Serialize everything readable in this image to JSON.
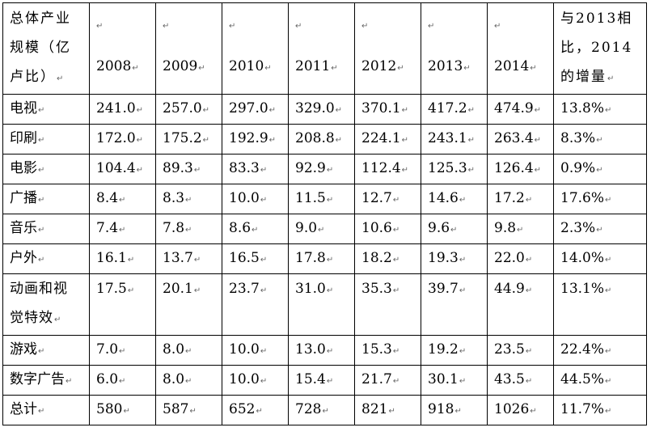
{
  "table": {
    "header_label_lines": [
      "总体产业",
      "规模（亿",
      "卢比）"
    ],
    "years": [
      "2008",
      "2009",
      "2010",
      "2011",
      "2012",
      "2013",
      "2014"
    ],
    "last_header_lines": [
      "与2013相",
      "比，2014",
      "的增量"
    ],
    "para_mark": "↵",
    "rows": [
      {
        "label": "电视",
        "values": [
          "241.0",
          "257.0",
          "297.0",
          "329.0",
          "370.1",
          "417.2",
          "474.9"
        ],
        "change": "13.8%"
      },
      {
        "label": "印刷",
        "values": [
          "172.0",
          "175.2",
          "192.9",
          "208.8",
          "224.1",
          "243.1",
          "263.4"
        ],
        "change": "8.3%"
      },
      {
        "label": "电影",
        "values": [
          "104.4",
          "89.3",
          "83.3",
          "92.9",
          "112.4",
          "125.3",
          "126.4"
        ],
        "change": "0.9%"
      },
      {
        "label": "广播",
        "values": [
          "8.4",
          "8.3",
          "10.0",
          "11.5",
          "12.7",
          "14.6",
          "17.2"
        ],
        "change": "17.6%"
      },
      {
        "label": "音乐",
        "values": [
          "7.4",
          "7.8",
          "8.6",
          "9.0",
          "10.6",
          "9.6",
          "9.8"
        ],
        "change": "2.3%"
      },
      {
        "label": "户外",
        "values": [
          "16.1",
          "13.7",
          "16.5",
          "17.8",
          "18.2",
          "19.3",
          "22.0"
        ],
        "change": "14.0%"
      },
      {
        "label_lines": [
          "动画和视",
          "觉特效"
        ],
        "values": [
          "17.5",
          "20.1",
          "23.7",
          "31.0",
          "35.3",
          "39.7",
          "44.9"
        ],
        "change": "13.1%"
      },
      {
        "label": "游戏",
        "values": [
          "7.0",
          "8.0",
          "10.0",
          "13.0",
          "15.3",
          "19.2",
          "23.5"
        ],
        "change": "22.4%"
      },
      {
        "label": "数字广告",
        "values": [
          "6.0",
          "8.0",
          "10.0",
          "15.4",
          "21.7",
          "30.1",
          "43.5"
        ],
        "change": "44.5%"
      },
      {
        "label": "总计",
        "values": [
          "580",
          "587",
          "652",
          "728",
          "821",
          "918",
          "1026"
        ],
        "change": "11.7%"
      }
    ]
  }
}
